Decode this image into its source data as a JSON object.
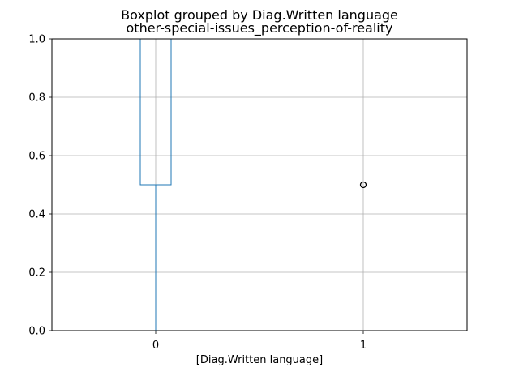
{
  "chart_data": {
    "type": "box",
    "suptitle": "Boxplot grouped by Diag.Written language",
    "title": "other-special-issues_perception-of-reality",
    "xlabel": "[Diag.Written language]",
    "ylabel": "",
    "ylim": [
      0,
      1
    ],
    "yticks": [
      0.0,
      0.2,
      0.4,
      0.6,
      0.8,
      1.0
    ],
    "ytick_labels": [
      "0.0",
      "0.2",
      "0.4",
      "0.6",
      "0.8",
      "1.0"
    ],
    "grid": true,
    "categories": [
      "0",
      "1"
    ],
    "boxes": [
      {
        "category": "0",
        "whislo": 0.0,
        "q1": 0.5,
        "med": 1.0,
        "q3": 1.0,
        "whishi": 1.0,
        "fliers": []
      },
      {
        "category": "1",
        "whislo": 1.0,
        "q1": 1.0,
        "med": 1.0,
        "q3": 1.0,
        "whishi": 1.0,
        "fliers": [
          0.5
        ]
      }
    ],
    "colors": {
      "box": "#1f77b4",
      "median": "#2ca02c",
      "grid": "#b0b0b0",
      "flier_edge": "#000000"
    }
  }
}
